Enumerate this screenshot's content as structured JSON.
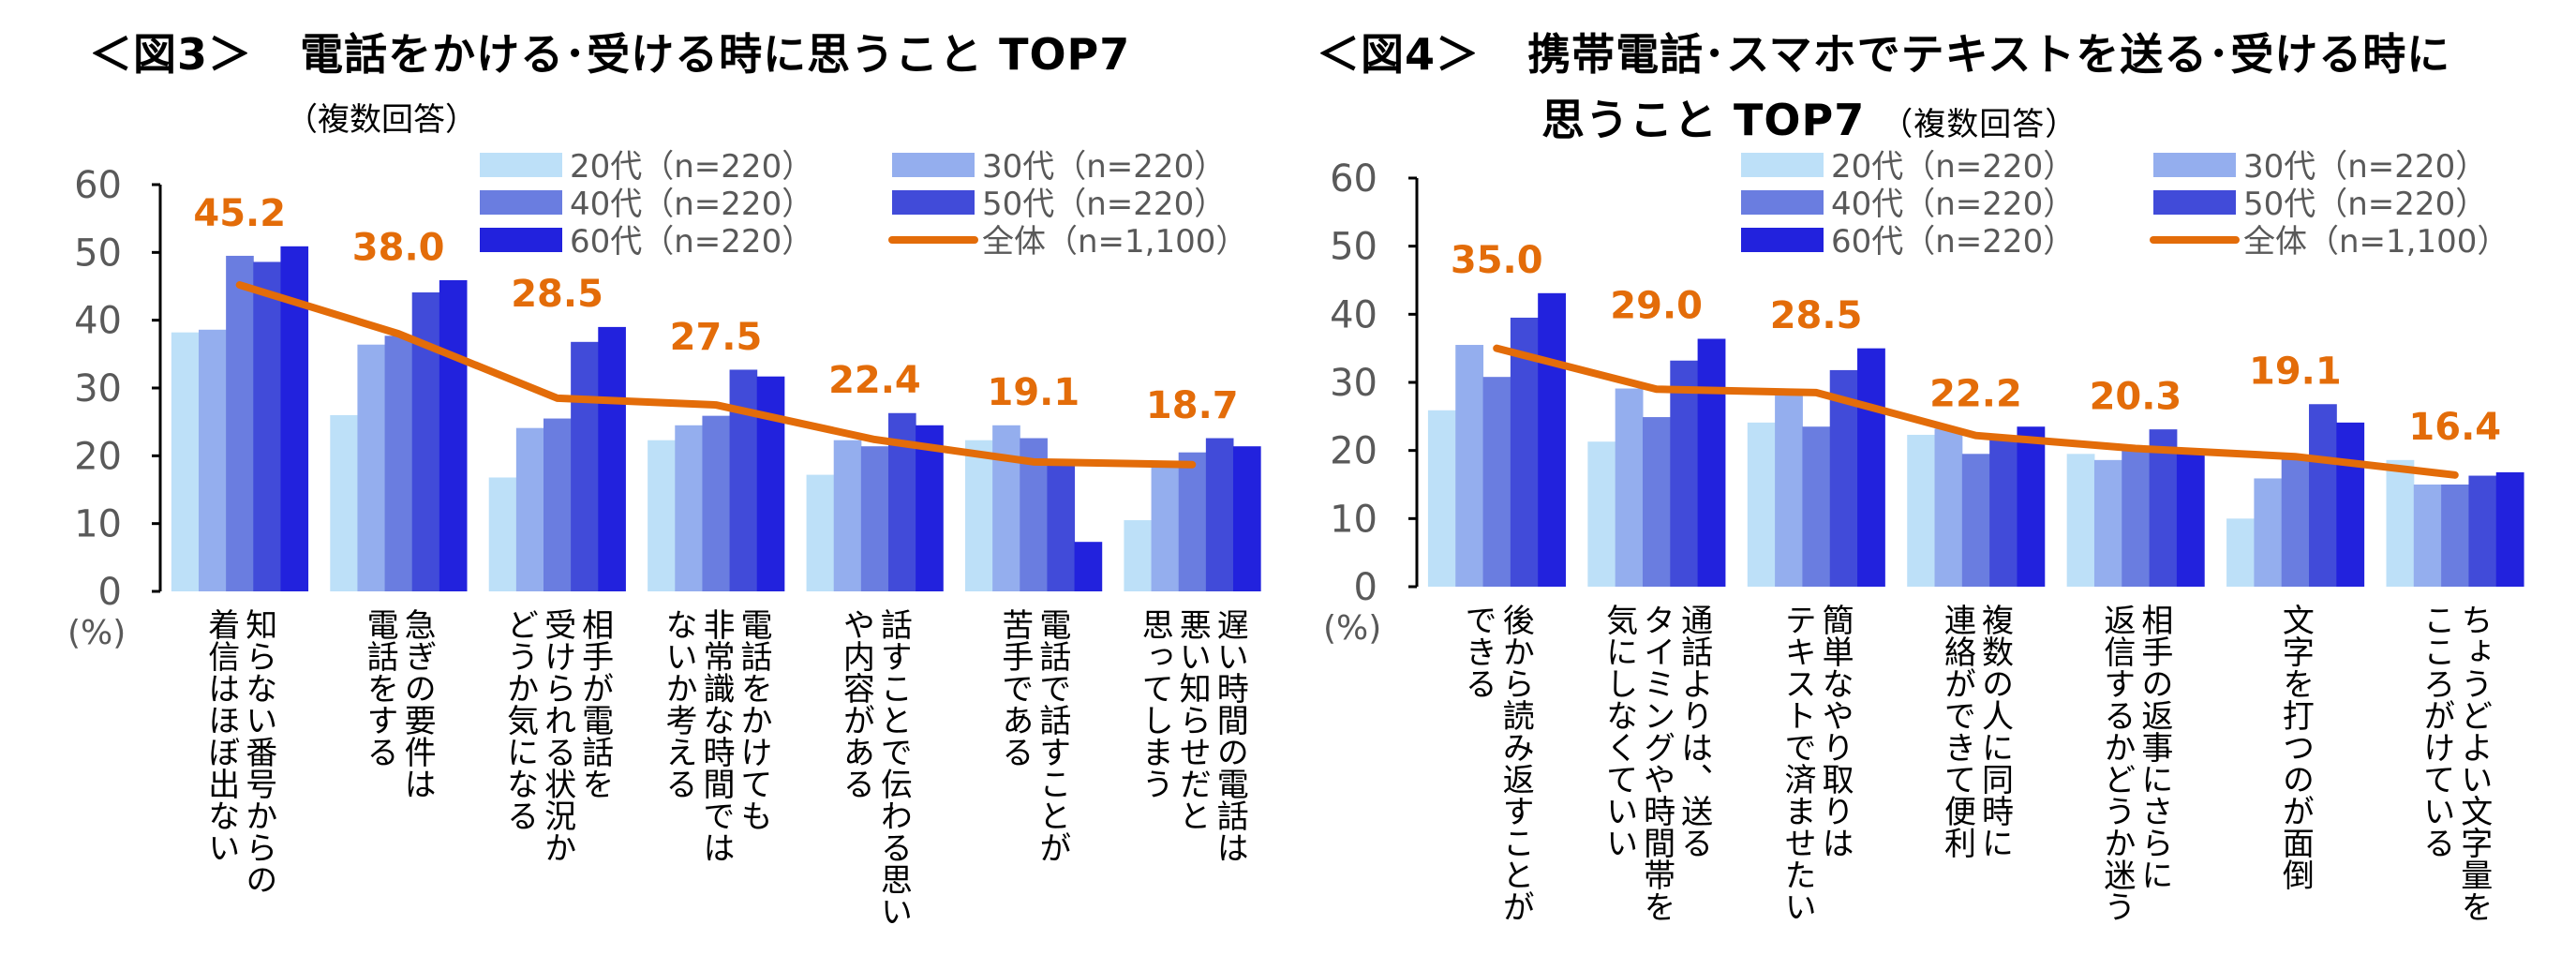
{
  "colors": {
    "20": "#BDE0F8",
    "30": "#94AEEE",
    "40": "#6A7DE0",
    "50": "#414BD9",
    "60": "#2222DD",
    "total": "#E36C09",
    "axis_text": "#595959"
  },
  "chart_data": [
    {
      "type": "bar",
      "title_num": "＜図3＞",
      "title": "電話をかける･受ける時に思うこと TOP7",
      "note": "（複数回答）",
      "ylabel": "(%)",
      "ylim": [
        0,
        60
      ],
      "yticks": [
        "0",
        "10",
        "20",
        "30",
        "40",
        "50",
        "60"
      ],
      "categories": [
        [
          "知らない番号からの",
          "着信はほぼ出ない"
        ],
        [
          "急ぎの要件は",
          "電話をする"
        ],
        [
          "相手が電話を",
          "受けられる状況か",
          "どうか気になる"
        ],
        [
          "電話をかけても",
          "非常識な時間では",
          "ないか考える"
        ],
        [
          "話すことで伝わる思い",
          "や内容がある"
        ],
        [
          "電話で話すことが",
          "苦手である"
        ],
        [
          "遅い時間の電話は",
          "悪い知らせだと",
          "思ってしまう"
        ]
      ],
      "series": [
        {
          "name": "20代（n=220）",
          "key": "20",
          "values": [
            38.2,
            26.0,
            16.8,
            22.3,
            17.2,
            22.3,
            10.5
          ]
        },
        {
          "name": "30代（n=220）",
          "key": "30",
          "values": [
            38.6,
            36.4,
            24.1,
            24.5,
            22.3,
            24.5,
            18.6
          ]
        },
        {
          "name": "40代（n=220）",
          "key": "40",
          "values": [
            49.5,
            37.7,
            25.5,
            25.9,
            21.4,
            22.6,
            20.5
          ]
        },
        {
          "name": "50代（n=220）",
          "key": "50",
          "values": [
            48.6,
            44.1,
            36.8,
            32.7,
            26.3,
            18.6,
            22.6
          ]
        },
        {
          "name": "60代（n=220）",
          "key": "60",
          "values": [
            50.9,
            45.9,
            39.0,
            31.7,
            24.5,
            7.3,
            21.4
          ]
        }
      ],
      "total": {
        "name": "全体（n=1,100）",
        "values": [
          45.2,
          38.0,
          28.5,
          27.5,
          22.4,
          19.1,
          18.7
        ],
        "labels": [
          "45.2",
          "38.0",
          "28.5",
          "27.5",
          "22.4",
          "19.1",
          "18.7"
        ]
      }
    },
    {
      "type": "bar",
      "title_num": "＜図4＞",
      "title": "携帯電話･スマホでテキストを送る･受ける時に",
      "title_line2": "思うこと TOP7",
      "note": "（複数回答）",
      "ylabel": "(%)",
      "ylim": [
        0,
        60
      ],
      "yticks": [
        "0",
        "10",
        "20",
        "30",
        "40",
        "50",
        "60"
      ],
      "categories": [
        [
          "後から読み返すことが",
          "できる"
        ],
        [
          "通話よりは、送る",
          "タイミングや時間帯を",
          "気にしなくていい"
        ],
        [
          "簡単なやり取りは",
          "テキストで済ませたい"
        ],
        [
          "複数の人に同時に",
          "連絡ができて便利"
        ],
        [
          "相手の返事にさらに",
          "返信するかどうか迷う"
        ],
        [
          "文字を打つのが面倒"
        ],
        [
          "ちょうどよい文字量を",
          "こころがけている"
        ]
      ],
      "series": [
        {
          "name": "20代（n=220）",
          "key": "20",
          "values": [
            25.9,
            21.3,
            24.1,
            22.3,
            19.5,
            10.0,
            18.6
          ]
        },
        {
          "name": "30代（n=220）",
          "key": "30",
          "values": [
            35.5,
            29.1,
            28.2,
            23.2,
            18.6,
            15.9,
            15.0
          ]
        },
        {
          "name": "40代（n=220）",
          "key": "40",
          "values": [
            30.8,
            24.9,
            23.5,
            19.5,
            20.0,
            19.0,
            15.0
          ]
        },
        {
          "name": "50代（n=220）",
          "key": "50",
          "values": [
            39.5,
            33.2,
            31.8,
            22.2,
            23.1,
            26.8,
            16.3
          ]
        },
        {
          "name": "60代（n=220）",
          "key": "60",
          "values": [
            43.1,
            36.4,
            35.0,
            23.5,
            20.0,
            24.1,
            16.8
          ]
        }
      ],
      "total": {
        "name": "全体（n=1,100）",
        "values": [
          35.0,
          29.0,
          28.5,
          22.2,
          20.3,
          19.1,
          16.4
        ],
        "labels": [
          "35.0",
          "29.0",
          "28.5",
          "22.2",
          "20.3",
          "19.1",
          "16.4"
        ]
      }
    }
  ]
}
